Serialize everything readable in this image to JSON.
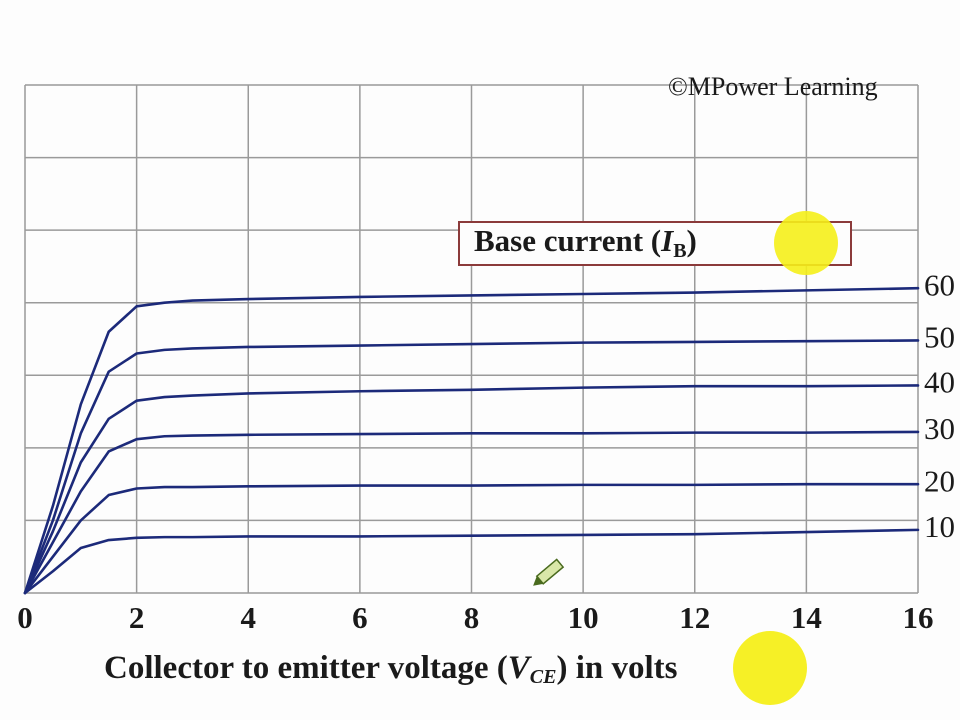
{
  "chart_data": {
    "type": "line",
    "watermark": "©MPower Learning",
    "legend_title": [
      "Base current (",
      "I",
      "B",
      ")"
    ],
    "x_label": [
      "Collector to emitter voltage (",
      "V",
      "CE",
      ") in volts"
    ],
    "x": [
      0,
      0.5,
      1,
      1.5,
      2,
      2.5,
      3,
      4,
      6,
      8,
      10,
      12,
      14,
      16
    ],
    "series": [
      {
        "name": "60",
        "color": "#1c2a7a",
        "values": [
          0,
          1.2,
          2.6,
          3.6,
          3.95,
          4.0,
          4.03,
          4.05,
          4.08,
          4.1,
          4.12,
          4.14,
          4.17,
          4.2
        ]
      },
      {
        "name": "50",
        "color": "#1c2a7a",
        "values": [
          0,
          1.0,
          2.2,
          3.05,
          3.3,
          3.35,
          3.37,
          3.39,
          3.41,
          3.43,
          3.45,
          3.46,
          3.47,
          3.48
        ]
      },
      {
        "name": "40",
        "color": "#1c2a7a",
        "values": [
          0,
          0.85,
          1.8,
          2.4,
          2.65,
          2.7,
          2.72,
          2.75,
          2.78,
          2.8,
          2.83,
          2.85,
          2.85,
          2.86
        ]
      },
      {
        "name": "30",
        "color": "#1c2a7a",
        "values": [
          0,
          0.7,
          1.4,
          1.95,
          2.12,
          2.16,
          2.17,
          2.18,
          2.19,
          2.2,
          2.2,
          2.21,
          2.21,
          2.22
        ]
      },
      {
        "name": "20",
        "color": "#1c2a7a",
        "values": [
          0,
          0.5,
          1.0,
          1.35,
          1.44,
          1.46,
          1.46,
          1.47,
          1.48,
          1.48,
          1.49,
          1.49,
          1.5,
          1.5
        ]
      },
      {
        "name": "10",
        "color": "#1c2a7a",
        "values": [
          0,
          0.3,
          0.62,
          0.73,
          0.76,
          0.77,
          0.77,
          0.78,
          0.78,
          0.79,
          0.8,
          0.81,
          0.84,
          0.87
        ]
      }
    ],
    "xlim": [
      0,
      16
    ],
    "xticks": [
      0,
      2,
      4,
      6,
      8,
      10,
      12,
      14,
      16
    ],
    "ylim": [
      0,
      7
    ],
    "yticks": [
      0,
      1,
      2,
      3,
      4,
      5,
      6,
      7
    ],
    "grid": true
  }
}
